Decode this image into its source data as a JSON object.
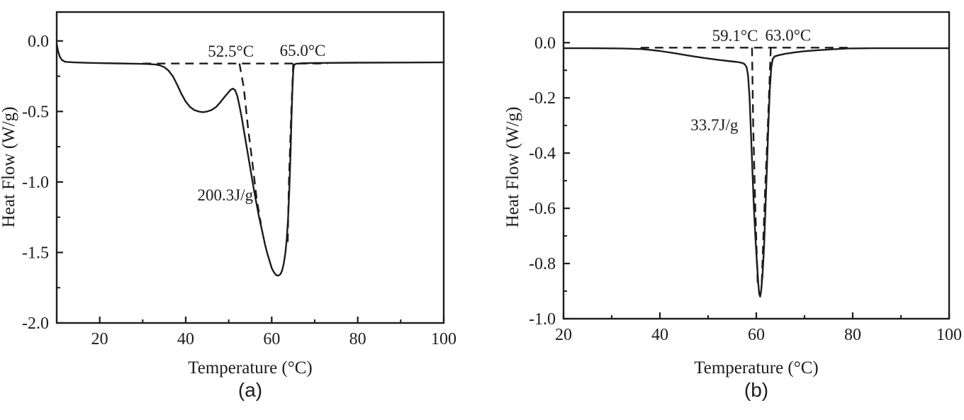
{
  "figure": {
    "background": "#ffffff",
    "line_color": "#1c1c1c",
    "panel_a_label": "(a)",
    "panel_b_label": "(b)"
  },
  "chart_data": [
    {
      "type": "line",
      "panel_label": "(a)",
      "title": "",
      "xlabel": "Temperature (°C)",
      "ylabel": "Heat Flow (W/g)",
      "xlim": [
        10,
        100
      ],
      "ylim": [
        -2.0,
        0.205
      ],
      "grid": false,
      "legend": "none",
      "x_ticks": [
        20,
        40,
        60,
        80,
        100
      ],
      "x_minor_ticks": [
        30,
        50,
        70,
        90
      ],
      "y_ticks": [
        0.0,
        -0.5,
        -1.0,
        -1.5,
        -2.0
      ],
      "y_tick_labels": [
        "0.0",
        "-0.5",
        "-1.0",
        "-1.5",
        "-2.0"
      ],
      "y_minor_ticks": [
        -0.25,
        -0.75,
        -1.25,
        -1.75
      ],
      "annotations": [
        {
          "name": "onset-temp-label",
          "text": "52.5°C",
          "x": 50.5,
          "y": -0.07
        },
        {
          "name": "offset-temp-label",
          "text": "65.0°C",
          "x": 67.2,
          "y": -0.065
        },
        {
          "name": "enthalpy-label",
          "text": "200.3J/g",
          "x": 49.2,
          "y": -1.09
        }
      ],
      "series": [
        {
          "name": "dsc-curve",
          "style": "solid",
          "points": [
            [
              10,
              -0.02
            ],
            [
              10.3,
              -0.07
            ],
            [
              10.7,
              -0.11
            ],
            [
              11.2,
              -0.135
            ],
            [
              12,
              -0.148
            ],
            [
              14,
              -0.152
            ],
            [
              17,
              -0.155
            ],
            [
              20,
              -0.157
            ],
            [
              24,
              -0.159
            ],
            [
              28,
              -0.161
            ],
            [
              31,
              -0.163
            ],
            [
              33,
              -0.167
            ],
            [
              34,
              -0.173
            ],
            [
              35,
              -0.186
            ],
            [
              36,
              -0.21
            ],
            [
              37,
              -0.25
            ],
            [
              38,
              -0.31
            ],
            [
              39,
              -0.375
            ],
            [
              40,
              -0.43
            ],
            [
              41,
              -0.468
            ],
            [
              42,
              -0.49
            ],
            [
              43,
              -0.5
            ],
            [
              44,
              -0.505
            ],
            [
              45,
              -0.5
            ],
            [
              46,
              -0.49
            ],
            [
              47,
              -0.47
            ],
            [
              48,
              -0.437
            ],
            [
              49,
              -0.398
            ],
            [
              50,
              -0.362
            ],
            [
              50.5,
              -0.345
            ],
            [
              51,
              -0.338
            ],
            [
              51.5,
              -0.35
            ],
            [
              52,
              -0.39
            ],
            [
              52.5,
              -0.46
            ],
            [
              53,
              -0.54
            ],
            [
              53.5,
              -0.63
            ],
            [
              54,
              -0.72
            ],
            [
              54.5,
              -0.81
            ],
            [
              55,
              -0.9
            ],
            [
              55.5,
              -0.99
            ],
            [
              56,
              -1.08
            ],
            [
              56.5,
              -1.16
            ],
            [
              57,
              -1.24
            ],
            [
              57.5,
              -1.31
            ],
            [
              58,
              -1.38
            ],
            [
              58.5,
              -1.45
            ],
            [
              59,
              -1.51
            ],
            [
              59.5,
              -1.56
            ],
            [
              60,
              -1.61
            ],
            [
              60.5,
              -1.64
            ],
            [
              61,
              -1.66
            ],
            [
              61.5,
              -1.665
            ],
            [
              62,
              -1.655
            ],
            [
              62.4,
              -1.63
            ],
            [
              62.8,
              -1.58
            ],
            [
              63.2,
              -1.5
            ],
            [
              63.5,
              -1.4
            ],
            [
              63.8,
              -1.26
            ],
            [
              64.1,
              -1.05
            ],
            [
              64.4,
              -0.78
            ],
            [
              64.6,
              -0.55
            ],
            [
              64.8,
              -0.35
            ],
            [
              65,
              -0.21
            ],
            [
              65.2,
              -0.17
            ],
            [
              65.6,
              -0.162
            ],
            [
              67,
              -0.158
            ],
            [
              70,
              -0.156
            ],
            [
              80,
              -0.154
            ],
            [
              90,
              -0.153
            ],
            [
              100,
              -0.152
            ]
          ]
        },
        {
          "name": "extrapolated-baseline",
          "style": "dashed",
          "points": [
            [
              30,
              -0.16
            ],
            [
              73,
              -0.16
            ]
          ]
        },
        {
          "name": "onset-tangent",
          "style": "dashed",
          "points": [
            [
              52.5,
              -0.16
            ],
            [
              53.5,
              -0.33
            ],
            [
              54.5,
              -0.62
            ],
            [
              55.5,
              -0.86
            ],
            [
              56.5,
              -1.12
            ],
            [
              57.5,
              -1.3
            ]
          ]
        },
        {
          "name": "offset-tangent",
          "style": "dashed",
          "points": [
            [
              65,
              -0.16
            ],
            [
              64.5,
              -0.55
            ],
            [
              64.0,
              -1.0
            ],
            [
              63.7,
              -1.45
            ]
          ]
        }
      ]
    },
    {
      "type": "line",
      "panel_label": "(b)",
      "title": "",
      "xlabel": "Temperature (°C)",
      "ylabel": "Heat Flow (W/g)",
      "xlim": [
        20,
        100
      ],
      "ylim": [
        -1.0,
        0.111
      ],
      "grid": false,
      "legend": "none",
      "x_ticks": [
        20,
        40,
        60,
        80,
        100
      ],
      "x_minor_ticks": [
        30,
        50,
        70,
        90
      ],
      "y_ticks": [
        0.0,
        -0.2,
        -0.4,
        -0.6,
        -0.8,
        -1.0
      ],
      "y_tick_labels": [
        "0.0",
        "-0.2",
        "-0.4",
        "-0.6",
        "-0.8",
        "-1.0"
      ],
      "y_minor_ticks": [
        -0.1,
        -0.3,
        -0.5,
        -0.7,
        -0.9
      ],
      "annotations": [
        {
          "name": "onset-temp-label",
          "text": "59.1°C",
          "x": 55.6,
          "y": 0.026
        },
        {
          "name": "offset-temp-label",
          "text": "63.0°C",
          "x": 66.6,
          "y": 0.028
        },
        {
          "name": "enthalpy-label",
          "text": "33.7J/g",
          "x": 51.3,
          "y": -0.297
        }
      ],
      "series": [
        {
          "name": "dsc-curve",
          "style": "solid",
          "points": [
            [
              20,
              -0.02
            ],
            [
              26,
              -0.02
            ],
            [
              32,
              -0.021
            ],
            [
              36,
              -0.023
            ],
            [
              38,
              -0.026
            ],
            [
              40,
              -0.03
            ],
            [
              43,
              -0.038
            ],
            [
              46,
              -0.047
            ],
            [
              49,
              -0.055
            ],
            [
              52,
              -0.062
            ],
            [
              54,
              -0.066
            ],
            [
              56,
              -0.07
            ],
            [
              57,
              -0.073
            ],
            [
              57.6,
              -0.078
            ],
            [
              58,
              -0.09
            ],
            [
              58.3,
              -0.12
            ],
            [
              58.6,
              -0.2
            ],
            [
              58.9,
              -0.33
            ],
            [
              59.2,
              -0.47
            ],
            [
              59.5,
              -0.6
            ],
            [
              59.8,
              -0.7
            ],
            [
              60.1,
              -0.79
            ],
            [
              60.4,
              -0.87
            ],
            [
              60.6,
              -0.91
            ],
            [
              60.8,
              -0.92
            ],
            [
              61,
              -0.9
            ],
            [
              61.3,
              -0.84
            ],
            [
              61.6,
              -0.74
            ],
            [
              61.9,
              -0.6
            ],
            [
              62.2,
              -0.45
            ],
            [
              62.5,
              -0.3
            ],
            [
              62.8,
              -0.17
            ],
            [
              63.1,
              -0.09
            ],
            [
              63.4,
              -0.06
            ],
            [
              63.8,
              -0.05
            ],
            [
              64.5,
              -0.046
            ],
            [
              66,
              -0.04
            ],
            [
              68,
              -0.035
            ],
            [
              70,
              -0.031
            ],
            [
              73,
              -0.027
            ],
            [
              76,
              -0.024
            ],
            [
              79,
              -0.021
            ],
            [
              84,
              -0.02
            ],
            [
              92,
              -0.02
            ],
            [
              100,
              -0.02
            ]
          ]
        },
        {
          "name": "extrapolated-baseline",
          "style": "dashed",
          "points": [
            [
              36,
              -0.018
            ],
            [
              79,
              -0.018
            ]
          ]
        },
        {
          "name": "onset-tangent",
          "style": "dashed",
          "points": [
            [
              59.1,
              -0.018
            ],
            [
              59.35,
              -0.3
            ],
            [
              59.8,
              -0.6
            ],
            [
              60.3,
              -0.88
            ]
          ]
        },
        {
          "name": "offset-tangent",
          "style": "dashed",
          "points": [
            [
              63.0,
              -0.018
            ],
            [
              62.4,
              -0.3
            ],
            [
              61.8,
              -0.55
            ],
            [
              61.1,
              -0.88
            ]
          ]
        }
      ]
    }
  ]
}
